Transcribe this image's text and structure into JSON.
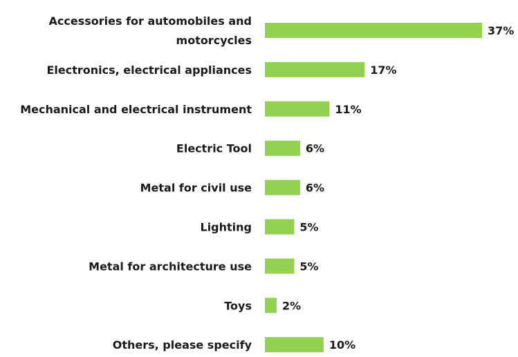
{
  "chart_data": {
    "type": "bar",
    "orientation": "horizontal",
    "categories": [
      [
        "Accessories for automobiles and",
        "motorcycles"
      ],
      [
        "Electronics, electrical appliances"
      ],
      [
        "Mechanical and electrical instrument"
      ],
      [
        "Electric Tool"
      ],
      [
        "Metal for civil use"
      ],
      [
        "Lighting"
      ],
      [
        "Metal for architecture use"
      ],
      [
        "Toys"
      ],
      [
        "Others, please specify"
      ]
    ],
    "values": [
      37,
      17,
      11,
      6,
      6,
      5,
      5,
      2,
      10
    ],
    "value_labels": [
      "37%",
      "17%",
      "11%",
      "6%",
      "6%",
      "5%",
      "5%",
      "2%",
      "10%"
    ],
    "bar_color": "#92d050",
    "title": "",
    "xlabel": "",
    "ylabel": "",
    "xlim": [
      0,
      37
    ],
    "grid": false,
    "legend": "none"
  }
}
